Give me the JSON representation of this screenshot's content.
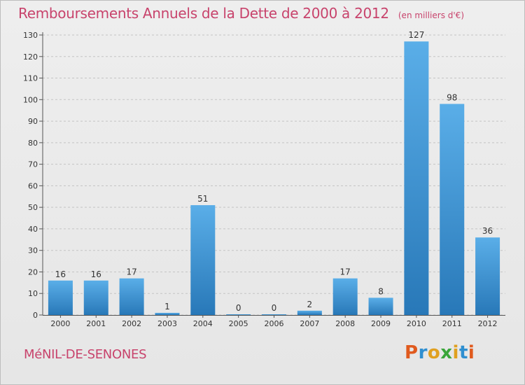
{
  "header": {
    "title": "Remboursements Annuels de la Dette de 2000 à 2012",
    "unit": "(en milliers d'€)"
  },
  "footer": {
    "commune": "MéNIL-DE-SENONES",
    "logo_text": "Proxiti"
  },
  "colors": {
    "title": "#c8436c",
    "bar_top": "#5aaee8",
    "bar_bottom": "#2878b8",
    "logo_letters": [
      "#e05a1e",
      "#2f8fd0",
      "#e0a020",
      "#3aa53a",
      "#e0a020",
      "#2f8fd0",
      "#e05a1e"
    ]
  },
  "chart_data": {
    "type": "bar",
    "title": "Remboursements Annuels de la Dette de 2000 à 2012",
    "subtitle": "(en milliers d'€)",
    "categories": [
      "2000",
      "2001",
      "2002",
      "2003",
      "2004",
      "2005",
      "2006",
      "2007",
      "2008",
      "2009",
      "2010",
      "2011",
      "2012"
    ],
    "values": [
      16,
      16,
      17,
      1,
      51,
      0,
      0,
      2,
      17,
      8,
      127,
      98,
      36
    ],
    "ylim": [
      0,
      130
    ],
    "yticks": [
      0,
      10,
      20,
      30,
      40,
      50,
      60,
      70,
      80,
      90,
      100,
      110,
      120,
      130
    ],
    "grid": true
  }
}
